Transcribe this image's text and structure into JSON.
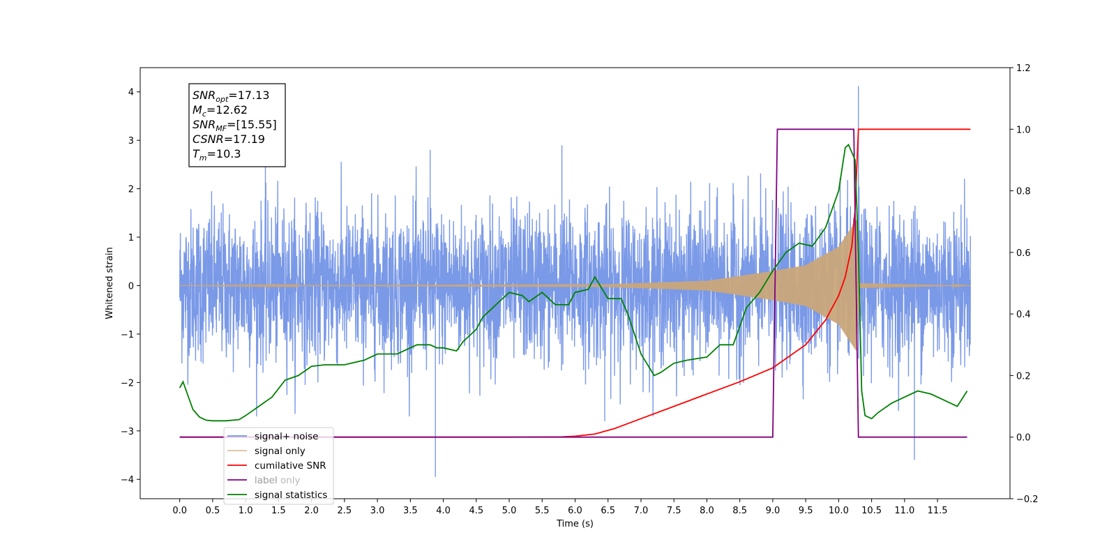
{
  "chart_data": {
    "type": "line",
    "xlabel": "Time (s)",
    "ylabel": "Whitened strain",
    "xlim": [
      -0.6,
      12.6
    ],
    "ylim": [
      -4.4,
      4.5
    ],
    "ylim_right": [
      -0.2,
      1.2
    ],
    "x_ticks": [
      "0.0",
      "0.5",
      "1.0",
      "1.5",
      "2.0",
      "2.5",
      "3.0",
      "3.5",
      "4.0",
      "4.5",
      "5.0",
      "5.5",
      "6.0",
      "6.5",
      "7.0",
      "7.5",
      "8.0",
      "8.5",
      "9.0",
      "9.5",
      "10.0",
      "10.5",
      "11.0",
      "11.5"
    ],
    "y_ticks_left": [
      "−4",
      "−3",
      "−2",
      "−1",
      "0",
      "1",
      "2",
      "3",
      "4"
    ],
    "y_ticks_right": [
      "−0.2",
      "0.0",
      "0.2",
      "0.4",
      "0.6",
      "0.8",
      "1.0",
      "1.2"
    ],
    "grid": false,
    "legend_position": "lower-left",
    "annotation": [
      {
        "base": "SNR",
        "sub": "opt",
        "rest": "=17.13"
      },
      {
        "base": "M",
        "sub": "c",
        "rest": "=12.62"
      },
      {
        "base": "SNR",
        "sub": "MF",
        "rest": "=[15.55]"
      },
      {
        "base": "CSNR",
        "sub": "",
        "rest": "=17.19"
      },
      {
        "base": "T",
        "sub": "m",
        "rest": "=10.3"
      }
    ],
    "series": [
      {
        "name": "signal+ noise",
        "axis": "left",
        "color": "#7394e6",
        "x_range": [
          0.0,
          12.0
        ],
        "typical_amplitude": 2.0,
        "spikes": [
          {
            "x": 3.88,
            "y": -3.95
          },
          {
            "x": 10.3,
            "y": 4.12
          },
          {
            "x": 11.15,
            "y": -3.6
          },
          {
            "x": 1.3,
            "y": 2.55
          },
          {
            "x": 3.8,
            "y": 2.8
          },
          {
            "x": 5.8,
            "y": 2.9
          },
          {
            "x": 6.45,
            "y": -2.8
          }
        ]
      },
      {
        "name": "signal only",
        "axis": "left",
        "color": "#c9a67a",
        "description_points": [
          [
            0.0,
            0.0
          ],
          [
            6.5,
            0.03
          ],
          [
            8.0,
            0.1
          ],
          [
            9.0,
            0.3
          ],
          [
            9.5,
            0.42
          ],
          [
            10.0,
            0.8
          ],
          [
            10.27,
            1.35
          ],
          [
            10.32,
            0.05
          ],
          [
            12.0,
            0.0
          ]
        ]
      },
      {
        "name": "cumilative SNR",
        "axis": "right",
        "color": "#ff0000",
        "points": [
          [
            0.0,
            0.0
          ],
          [
            5.0,
            0.0
          ],
          [
            5.8,
            0.001
          ],
          [
            6.0,
            0.003
          ],
          [
            6.3,
            0.01
          ],
          [
            6.6,
            0.028
          ],
          [
            7.0,
            0.06
          ],
          [
            7.5,
            0.1
          ],
          [
            8.0,
            0.14
          ],
          [
            8.5,
            0.18
          ],
          [
            9.0,
            0.225
          ],
          [
            9.5,
            0.3
          ],
          [
            9.8,
            0.38
          ],
          [
            10.0,
            0.46
          ],
          [
            10.1,
            0.52
          ],
          [
            10.2,
            0.62
          ],
          [
            10.25,
            0.74
          ],
          [
            10.28,
            0.9
          ],
          [
            10.3,
            1.0
          ],
          [
            12.0,
            1.0
          ]
        ]
      },
      {
        "name": "label",
        "axis": "right",
        "color": "#800080",
        "points": [
          [
            0.0,
            0.0
          ],
          [
            9.0,
            0.0
          ],
          [
            9.07,
            1.0
          ],
          [
            10.23,
            1.0
          ],
          [
            10.3,
            0.0
          ],
          [
            11.95,
            0.0
          ]
        ]
      },
      {
        "name": "label only",
        "axis": "right",
        "color": "#b0b0b0",
        "points": []
      },
      {
        "name": "signal statistics",
        "axis": "right",
        "color": "#008000",
        "points": [
          [
            0.0,
            0.16
          ],
          [
            0.05,
            0.18
          ],
          [
            0.1,
            0.15
          ],
          [
            0.2,
            0.09
          ],
          [
            0.3,
            0.065
          ],
          [
            0.4,
            0.055
          ],
          [
            0.5,
            0.053
          ],
          [
            0.7,
            0.053
          ],
          [
            0.9,
            0.057
          ],
          [
            1.0,
            0.07
          ],
          [
            1.2,
            0.1
          ],
          [
            1.4,
            0.13
          ],
          [
            1.6,
            0.185
          ],
          [
            1.8,
            0.2
          ],
          [
            2.0,
            0.23
          ],
          [
            2.2,
            0.235
          ],
          [
            2.5,
            0.235
          ],
          [
            2.8,
            0.25
          ],
          [
            3.0,
            0.27
          ],
          [
            3.3,
            0.27
          ],
          [
            3.6,
            0.3
          ],
          [
            3.8,
            0.3
          ],
          [
            3.9,
            0.29
          ],
          [
            4.0,
            0.29
          ],
          [
            4.2,
            0.28
          ],
          [
            4.3,
            0.31
          ],
          [
            4.4,
            0.33
          ],
          [
            4.5,
            0.35
          ],
          [
            4.6,
            0.39
          ],
          [
            4.7,
            0.41
          ],
          [
            4.8,
            0.43
          ],
          [
            5.0,
            0.47
          ],
          [
            5.2,
            0.46
          ],
          [
            5.3,
            0.44
          ],
          [
            5.5,
            0.47
          ],
          [
            5.7,
            0.43
          ],
          [
            5.9,
            0.43
          ],
          [
            6.0,
            0.47
          ],
          [
            6.2,
            0.48
          ],
          [
            6.3,
            0.52
          ],
          [
            6.5,
            0.45
          ],
          [
            6.7,
            0.45
          ],
          [
            6.8,
            0.4
          ],
          [
            7.0,
            0.27
          ],
          [
            7.2,
            0.2
          ],
          [
            7.3,
            0.21
          ],
          [
            7.5,
            0.24
          ],
          [
            7.7,
            0.25
          ],
          [
            8.0,
            0.26
          ],
          [
            8.2,
            0.3
          ],
          [
            8.4,
            0.3
          ],
          [
            8.6,
            0.42
          ],
          [
            8.8,
            0.47
          ],
          [
            9.0,
            0.54
          ],
          [
            9.2,
            0.6
          ],
          [
            9.4,
            0.63
          ],
          [
            9.6,
            0.62
          ],
          [
            9.8,
            0.68
          ],
          [
            10.0,
            0.8
          ],
          [
            10.1,
            0.94
          ],
          [
            10.15,
            0.95
          ],
          [
            10.25,
            0.9
          ],
          [
            10.3,
            0.6
          ],
          [
            10.35,
            0.15
          ],
          [
            10.4,
            0.07
          ],
          [
            10.5,
            0.06
          ],
          [
            10.6,
            0.08
          ],
          [
            10.8,
            0.11
          ],
          [
            11.0,
            0.13
          ],
          [
            11.2,
            0.15
          ],
          [
            11.4,
            0.14
          ],
          [
            11.6,
            0.12
          ],
          [
            11.8,
            0.1
          ],
          [
            11.95,
            0.15
          ]
        ]
      }
    ]
  }
}
